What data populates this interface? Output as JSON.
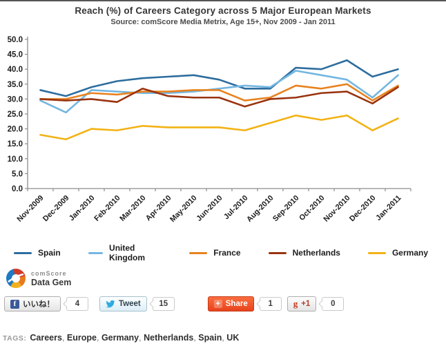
{
  "page": {
    "title": "Reach (%) of Careers Category across 5 Major European Markets",
    "subtitle": "Source: comScore Media Metrix, Age 15+, Nov 2009 - Jan 2011"
  },
  "chart_data": {
    "type": "line",
    "categories": [
      "Nov-2009",
      "Dec-2009",
      "Jan-2010",
      "Feb-2010",
      "Mar-2010",
      "Apr-2010",
      "May-2010",
      "Jun-2010",
      "Jul-2010",
      "Aug-2010",
      "Sep-2010",
      "Oct-2010",
      "Nov-2010",
      "Dec-2010",
      "Jan-2011"
    ],
    "series": [
      {
        "name": "Spain",
        "color": "#2d6d9e",
        "values": [
          33,
          31,
          34,
          36,
          37,
          37.5,
          38,
          36.5,
          33.5,
          33.5,
          40.5,
          40,
          43,
          37.5,
          40
        ]
      },
      {
        "name": "United Kingdom",
        "color": "#74b6e2",
        "values": [
          29.5,
          25.5,
          33,
          32.5,
          32,
          32,
          32.5,
          33.5,
          34.5,
          34,
          39.5,
          38,
          36.5,
          30.5,
          38
        ]
      },
      {
        "name": "France",
        "color": "#e8821e",
        "values": [
          30,
          30,
          32,
          31.5,
          32.5,
          32.5,
          33,
          33,
          29.5,
          30.5,
          34.5,
          33.5,
          35,
          29.5,
          34.5
        ]
      },
      {
        "name": "Netherlands",
        "color": "#9a330e",
        "values": [
          30,
          29.5,
          30,
          29,
          33.5,
          31,
          30.5,
          30.5,
          27.5,
          30,
          30.5,
          32,
          32.5,
          28.5,
          34
        ]
      },
      {
        "name": "Germany",
        "color": "#f3b214",
        "values": [
          18,
          16.5,
          20,
          19.5,
          21,
          20.5,
          20.5,
          20.5,
          19.5,
          22,
          24.5,
          23,
          24.5,
          19.5,
          23.5
        ]
      }
    ],
    "title": "Reach (%) of Careers Category across 5 Major European Markets",
    "xlabel": "",
    "ylabel": "",
    "ylim": [
      0,
      50
    ],
    "yticks": [
      "0.0",
      "5.0",
      "10.0",
      "15.0",
      "20.0",
      "25.0",
      "30.0",
      "35.0",
      "40.0",
      "45.0",
      "50.0"
    ],
    "grid": false,
    "legend_position": "bottom"
  },
  "branding": {
    "name_line": "comScore",
    "product_line": "Data Gem"
  },
  "social": {
    "facebook_label": "いいね！",
    "facebook_count": "4",
    "tweet_label": "Tweet",
    "tweet_count": "15",
    "share_label": "Share",
    "share_count": "1",
    "plusone_label": "+1",
    "plusone_count": "0"
  },
  "tags": {
    "label": "TAGS:",
    "items": [
      "Careers",
      "Europe",
      "Germany",
      "Netherlands",
      "Spain",
      "UK"
    ]
  }
}
